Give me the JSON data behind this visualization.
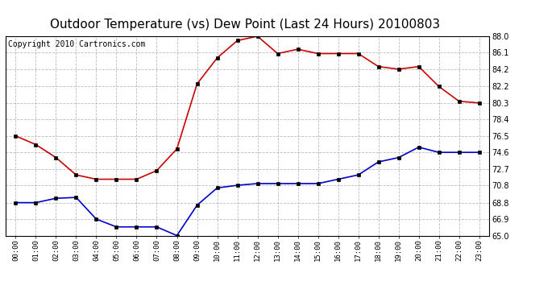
{
  "title": "Outdoor Temperature (vs) Dew Point (Last 24 Hours) 20100803",
  "copyright": "Copyright 2010 Cartronics.com",
  "x_labels": [
    "00:00",
    "01:00",
    "02:00",
    "03:00",
    "04:00",
    "05:00",
    "06:00",
    "07:00",
    "08:00",
    "09:00",
    "10:00",
    "11:00",
    "12:00",
    "13:00",
    "14:00",
    "15:00",
    "16:00",
    "17:00",
    "18:00",
    "19:00",
    "20:00",
    "21:00",
    "22:00",
    "23:00"
  ],
  "temp_red": [
    76.5,
    75.5,
    74.0,
    72.0,
    71.5,
    71.5,
    71.5,
    72.5,
    75.0,
    82.5,
    85.5,
    87.5,
    88.0,
    86.0,
    86.5,
    86.0,
    86.0,
    86.0,
    84.5,
    84.2,
    84.5,
    82.2,
    80.5,
    80.3
  ],
  "temp_blue": [
    68.8,
    68.8,
    69.3,
    69.4,
    66.9,
    66.0,
    66.0,
    66.0,
    65.0,
    68.5,
    70.5,
    70.8,
    71.0,
    71.0,
    71.0,
    71.0,
    71.5,
    72.0,
    73.5,
    74.0,
    75.2,
    74.6,
    74.6,
    74.6
  ],
  "y_min": 65.0,
  "y_max": 88.0,
  "y_ticks": [
    65.0,
    66.9,
    68.8,
    70.8,
    72.7,
    74.6,
    76.5,
    78.4,
    80.3,
    82.2,
    84.2,
    86.1,
    88.0
  ],
  "red_color": "#cc0000",
  "blue_color": "#0000cc",
  "bg_color": "#ffffff",
  "grid_color": "#aaaaaa",
  "title_fontsize": 11,
  "copyright_fontsize": 7
}
